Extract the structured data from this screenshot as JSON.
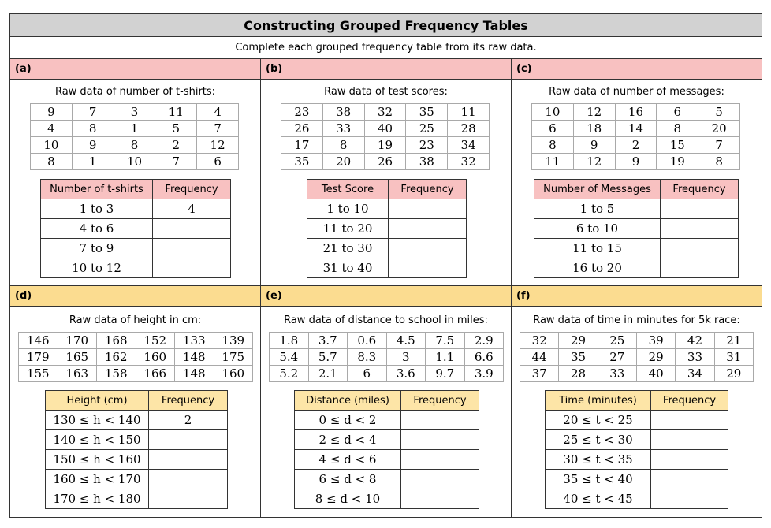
{
  "title": "Constructing Grouped Frequency Tables",
  "subtitle": "Complete each grouped frequency table from its raw data.",
  "panels": [
    {
      "label": "(a)",
      "caption": "Raw data of number of t-shirts:",
      "raw": [
        [
          "9",
          "7",
          "3",
          "11",
          "4"
        ],
        [
          "4",
          "8",
          "1",
          "5",
          "7"
        ],
        [
          "10",
          "9",
          "8",
          "2",
          "12"
        ],
        [
          "8",
          "1",
          "10",
          "7",
          "6"
        ]
      ],
      "headers": [
        "Number of t-shirts",
        "Frequency"
      ],
      "rows": [
        [
          "1 to 3",
          "4"
        ],
        [
          "4 to 6",
          ""
        ],
        [
          "7 to 9",
          ""
        ],
        [
          "10 to 12",
          ""
        ]
      ]
    },
    {
      "label": "(b)",
      "caption": "Raw data of test scores:",
      "raw": [
        [
          "23",
          "38",
          "32",
          "35",
          "11"
        ],
        [
          "26",
          "33",
          "40",
          "25",
          "28"
        ],
        [
          "17",
          "8",
          "19",
          "23",
          "34"
        ],
        [
          "35",
          "20",
          "26",
          "38",
          "32"
        ]
      ],
      "headers": [
        "Test Score",
        "Frequency"
      ],
      "rows": [
        [
          "1 to 10",
          ""
        ],
        [
          "11 to 20",
          ""
        ],
        [
          "21 to 30",
          ""
        ],
        [
          "31 to 40",
          ""
        ]
      ]
    },
    {
      "label": "(c)",
      "caption": "Raw data of number of messages:",
      "raw": [
        [
          "10",
          "12",
          "16",
          "6",
          "5"
        ],
        [
          "6",
          "18",
          "14",
          "8",
          "20"
        ],
        [
          "8",
          "9",
          "2",
          "15",
          "7"
        ],
        [
          "11",
          "12",
          "9",
          "19",
          "8"
        ]
      ],
      "headers": [
        "Number of Messages",
        "Frequency"
      ],
      "rows": [
        [
          "1 to 5",
          ""
        ],
        [
          "6 to 10",
          ""
        ],
        [
          "11 to 15",
          ""
        ],
        [
          "16 to 20",
          ""
        ]
      ]
    },
    {
      "label": "(d)",
      "caption": "Raw data of height in cm:",
      "raw": [
        [
          "146",
          "170",
          "168",
          "152",
          "133",
          "139"
        ],
        [
          "179",
          "165",
          "162",
          "160",
          "148",
          "175"
        ],
        [
          "155",
          "163",
          "158",
          "166",
          "148",
          "160"
        ]
      ],
      "headers": [
        "Height (cm)",
        "Frequency"
      ],
      "rows": [
        [
          "130 ≤ h < 140",
          "2"
        ],
        [
          "140 ≤ h < 150",
          ""
        ],
        [
          "150 ≤ h < 160",
          ""
        ],
        [
          "160 ≤ h < 170",
          ""
        ],
        [
          "170 ≤ h < 180",
          ""
        ]
      ]
    },
    {
      "label": "(e)",
      "caption": "Raw data of distance to school in miles:",
      "raw": [
        [
          "1.8",
          "3.7",
          "0.6",
          "4.5",
          "7.5",
          "2.9"
        ],
        [
          "5.4",
          "5.7",
          "8.3",
          "3",
          "1.1",
          "6.6"
        ],
        [
          "5.2",
          "2.1",
          "6",
          "3.6",
          "9.7",
          "3.9"
        ]
      ],
      "headers": [
        "Distance (miles)",
        "Frequency"
      ],
      "rows": [
        [
          "0 ≤ d < 2",
          ""
        ],
        [
          "2 ≤ d < 4",
          ""
        ],
        [
          "4 ≤ d < 6",
          ""
        ],
        [
          "6 ≤ d < 8",
          ""
        ],
        [
          "8 ≤ d < 10",
          ""
        ]
      ]
    },
    {
      "label": "(f)",
      "caption": "Raw data of time in minutes for 5k race:",
      "raw": [
        [
          "32",
          "29",
          "25",
          "39",
          "42",
          "21"
        ],
        [
          "44",
          "35",
          "27",
          "29",
          "33",
          "31"
        ],
        [
          "37",
          "28",
          "33",
          "40",
          "34",
          "29"
        ]
      ],
      "headers": [
        "Time (minutes)",
        "Frequency"
      ],
      "rows": [
        [
          "20 ≤ t < 25",
          ""
        ],
        [
          "25 ≤ t < 30",
          ""
        ],
        [
          "30 ≤ t < 35",
          ""
        ],
        [
          "35 ≤ t < 40",
          ""
        ],
        [
          "40 ≤ t < 45",
          ""
        ]
      ]
    }
  ]
}
